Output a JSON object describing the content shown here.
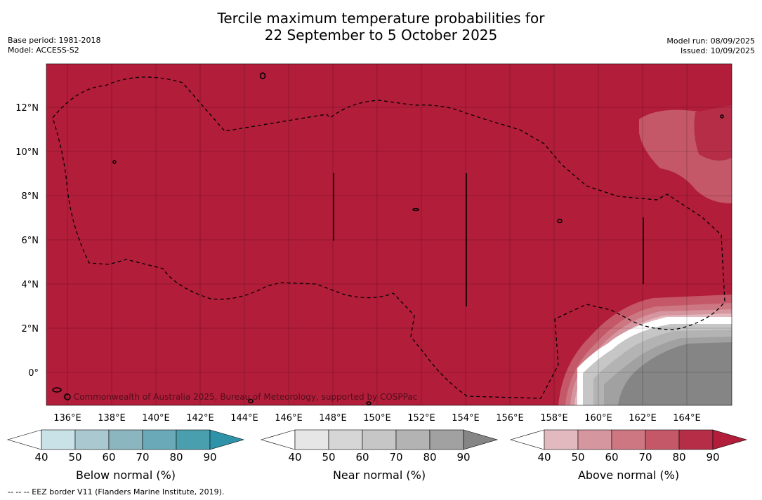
{
  "title": {
    "line1": "Tercile maximum temperature probabilities for",
    "line2": "22 September to 5 October 2025"
  },
  "meta_left": {
    "base_period": "Base period: 1981-2018",
    "model": "Model: ACCESS-S2"
  },
  "meta_right": {
    "model_run": "Model run: 08/09/2025",
    "issued": "Issued: 10/09/2025"
  },
  "map": {
    "lon_labels": [
      "136°E",
      "138°E",
      "140°E",
      "142°E",
      "144°E",
      "146°E",
      "148°E",
      "150°E",
      "152°E",
      "154°E",
      "156°E",
      "158°E",
      "160°E",
      "162°E",
      "164°E"
    ],
    "lat_labels": [
      "12°N",
      "10°N",
      "8°N",
      "6°N",
      "4°N",
      "2°N",
      "0°"
    ],
    "copyright": "© Commonwealth of Australia 2025, Bureau of Meteorology, supported by COSPPac",
    "background_color": "#b21d3a"
  },
  "colorbars": [
    {
      "name": "below",
      "label": "Below normal (%)",
      "ticks": [
        "40",
        "50",
        "60",
        "70",
        "80",
        "90"
      ],
      "colors": [
        "#ffffff",
        "#c9e2e8",
        "#a9c8cf",
        "#8bb5bf",
        "#6aaab8",
        "#4a9fae",
        "#2e93a8"
      ]
    },
    {
      "name": "near",
      "label": "Near normal (%)",
      "ticks": [
        "40",
        "50",
        "60",
        "70",
        "80",
        "90"
      ],
      "colors": [
        "#ffffff",
        "#e6e6e6",
        "#d6d6d6",
        "#c6c6c6",
        "#b3b3b3",
        "#a1a1a1",
        "#858585"
      ]
    },
    {
      "name": "above",
      "label": "Above normal (%)",
      "ticks": [
        "40",
        "50",
        "60",
        "70",
        "80",
        "90"
      ],
      "colors": [
        "#ffffff",
        "#e1b9be",
        "#d6969f",
        "#cd7782",
        "#c45868",
        "#b62d48",
        "#b21d3a"
      ]
    }
  ],
  "footer": "--  --  -- EEZ border V11 (Flanders Marine Institute, 2019)."
}
